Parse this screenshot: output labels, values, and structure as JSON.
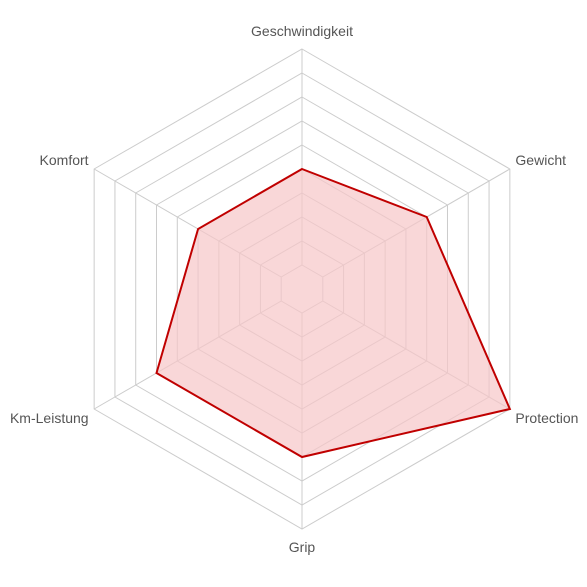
{
  "chart_data": {
    "type": "radar",
    "axes": [
      "Geschwindigkeit",
      "Gewicht",
      "Protection",
      "Grip",
      "Km-Leistung",
      "Komfort"
    ],
    "series": [
      {
        "values": [
          5,
          6,
          10,
          7,
          7,
          5
        ]
      }
    ],
    "rlim": [
      0,
      10
    ],
    "grid_levels": 10,
    "grid_shown_from": 1,
    "grid": true,
    "colors": {
      "line": "#c00000",
      "fill": "#f6c6c8",
      "grid": "#cccccc",
      "label": "#555555"
    }
  }
}
